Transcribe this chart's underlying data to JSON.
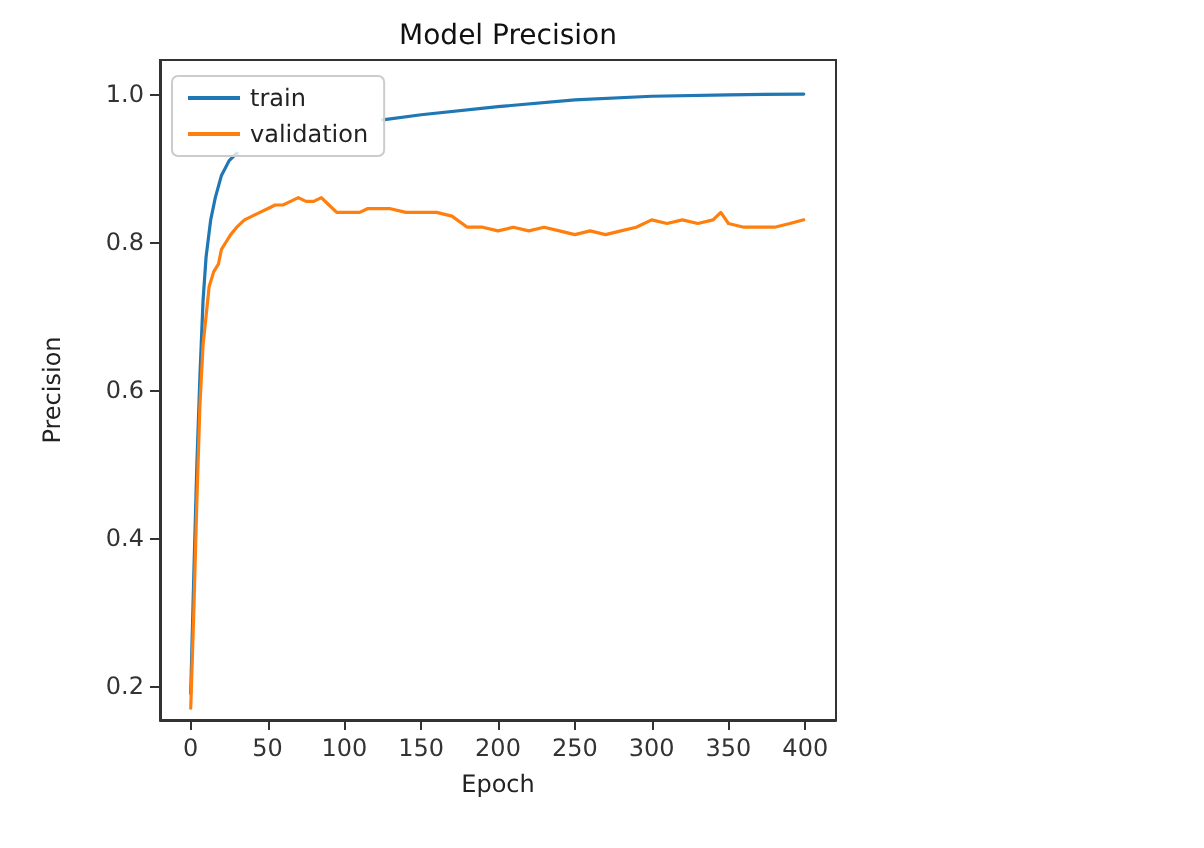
{
  "chart_data": {
    "type": "line",
    "title": "Model Precision",
    "xlabel": "Epoch",
    "ylabel": "Precision",
    "series": [
      {
        "name": "train",
        "color": "#1f77b4",
        "x": [
          0,
          2,
          4,
          6,
          8,
          10,
          13,
          16,
          20,
          25,
          30,
          40,
          50,
          75,
          100,
          125,
          150,
          200,
          250,
          300,
          350,
          399
        ],
        "values": [
          0.19,
          0.35,
          0.5,
          0.62,
          0.72,
          0.78,
          0.83,
          0.86,
          0.89,
          0.91,
          0.92,
          null,
          null,
          null,
          null,
          0.965,
          0.972,
          0.983,
          0.992,
          0.997,
          0.999,
          1.0
        ]
      },
      {
        "name": "validation",
        "color": "#ff7f0e",
        "x": [
          0,
          2,
          4,
          6,
          8,
          10,
          12,
          15,
          18,
          20,
          23,
          26,
          30,
          35,
          40,
          45,
          50,
          55,
          60,
          65,
          70,
          75,
          80,
          85,
          90,
          95,
          100,
          110,
          115,
          130,
          140,
          150,
          160,
          170,
          180,
          190,
          200,
          210,
          220,
          230,
          240,
          250,
          260,
          270,
          280,
          290,
          300,
          310,
          320,
          330,
          340,
          345,
          350,
          360,
          380,
          390,
          399
        ],
        "values": [
          0.17,
          0.3,
          0.45,
          0.58,
          0.66,
          0.7,
          0.74,
          0.76,
          0.77,
          0.79,
          0.8,
          0.81,
          0.82,
          0.83,
          0.835,
          0.84,
          0.845,
          0.85,
          0.85,
          0.855,
          0.86,
          0.855,
          0.855,
          0.86,
          0.85,
          0.84,
          0.84,
          0.84,
          0.845,
          0.845,
          0.84,
          0.84,
          0.84,
          0.835,
          0.82,
          0.82,
          0.815,
          0.82,
          0.815,
          0.82,
          0.815,
          0.81,
          0.815,
          0.81,
          0.815,
          0.82,
          0.83,
          0.825,
          0.83,
          0.825,
          0.83,
          0.84,
          0.825,
          0.82,
          0.82,
          0.825,
          0.83
        ]
      }
    ],
    "xlim": [
      -20,
      420
    ],
    "xticks": [
      0,
      50,
      100,
      150,
      200,
      250,
      300,
      350,
      400
    ],
    "ylim": [
      0.154,
      1.046
    ],
    "yticks": [
      0.2,
      0.4,
      0.6,
      0.8,
      {
        "value": 1.0,
        "label": "1.0"
      }
    ],
    "grid": false,
    "legend": "top left",
    "marker": "none",
    "line_style": "solid"
  }
}
